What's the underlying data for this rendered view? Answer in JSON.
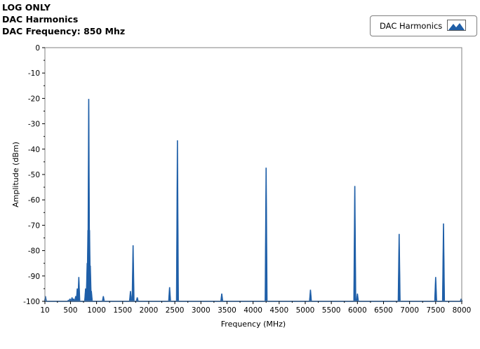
{
  "header": {
    "line1": "LOG ONLY",
    "line2": "DAC Harmonics",
    "line3": "DAC Frequency: 850 Mhz"
  },
  "legend": {
    "label": "DAC Harmonics",
    "icon": "area-swatch-icon",
    "color": "#1f5fa8"
  },
  "chart_data": {
    "type": "area",
    "xlabel": "Frequency (MHz)",
    "ylabel": "Amplitude (dBm)",
    "xlim": [
      10,
      8000
    ],
    "ylim": [
      -100,
      0
    ],
    "x_ticks": [
      "10",
      "500",
      "1000",
      "1500",
      "2000",
      "2500",
      "3000",
      "3500",
      "4000",
      "4500",
      "5000",
      "5500",
      "6000",
      "6500",
      "7000",
      "7500",
      "8000"
    ],
    "x_tick_values": [
      10,
      500,
      1000,
      1500,
      2000,
      2500,
      3000,
      3500,
      4000,
      4500,
      5000,
      5500,
      6000,
      6500,
      7000,
      7500,
      8000
    ],
    "y_ticks": [
      "0",
      "-10",
      "-20",
      "-30",
      "-40",
      "-50",
      "-60",
      "-70",
      "-80",
      "-90",
      "-100"
    ],
    "y_tick_values": [
      0,
      -10,
      -20,
      -30,
      -40,
      -50,
      -60,
      -70,
      -80,
      -90,
      -100
    ],
    "grid": false,
    "floor": -100,
    "series": [
      {
        "name": "DAC Harmonics",
        "color": "#1f5fa8",
        "peaks": [
          {
            "x": 20,
            "y": -98
          },
          {
            "x": 460,
            "y": -99.5
          },
          {
            "x": 490,
            "y": -99
          },
          {
            "x": 530,
            "y": -98.5
          },
          {
            "x": 560,
            "y": -99
          },
          {
            "x": 600,
            "y": -98
          },
          {
            "x": 630,
            "y": -95
          },
          {
            "x": 660,
            "y": -90.5
          },
          {
            "x": 790,
            "y": -95
          },
          {
            "x": 820,
            "y": -85
          },
          {
            "x": 835,
            "y": -72
          },
          {
            "x": 850,
            "y": -20.3
          },
          {
            "x": 865,
            "y": -72
          },
          {
            "x": 880,
            "y": -86
          },
          {
            "x": 900,
            "y": -96
          },
          {
            "x": 1130,
            "y": -98
          },
          {
            "x": 1650,
            "y": -96
          },
          {
            "x": 1700,
            "y": -78
          },
          {
            "x": 1780,
            "y": -98.5
          },
          {
            "x": 2400,
            "y": -94.5
          },
          {
            "x": 2550,
            "y": -36.6
          },
          {
            "x": 3400,
            "y": -97
          },
          {
            "x": 4250,
            "y": -47.4
          },
          {
            "x": 5100,
            "y": -95.5
          },
          {
            "x": 5950,
            "y": -54.6
          },
          {
            "x": 6000,
            "y": -97
          },
          {
            "x": 6800,
            "y": -73.5
          },
          {
            "x": 7500,
            "y": -90.5
          },
          {
            "x": 7650,
            "y": -69.4
          },
          {
            "x": 7990,
            "y": -99
          }
        ]
      }
    ]
  }
}
